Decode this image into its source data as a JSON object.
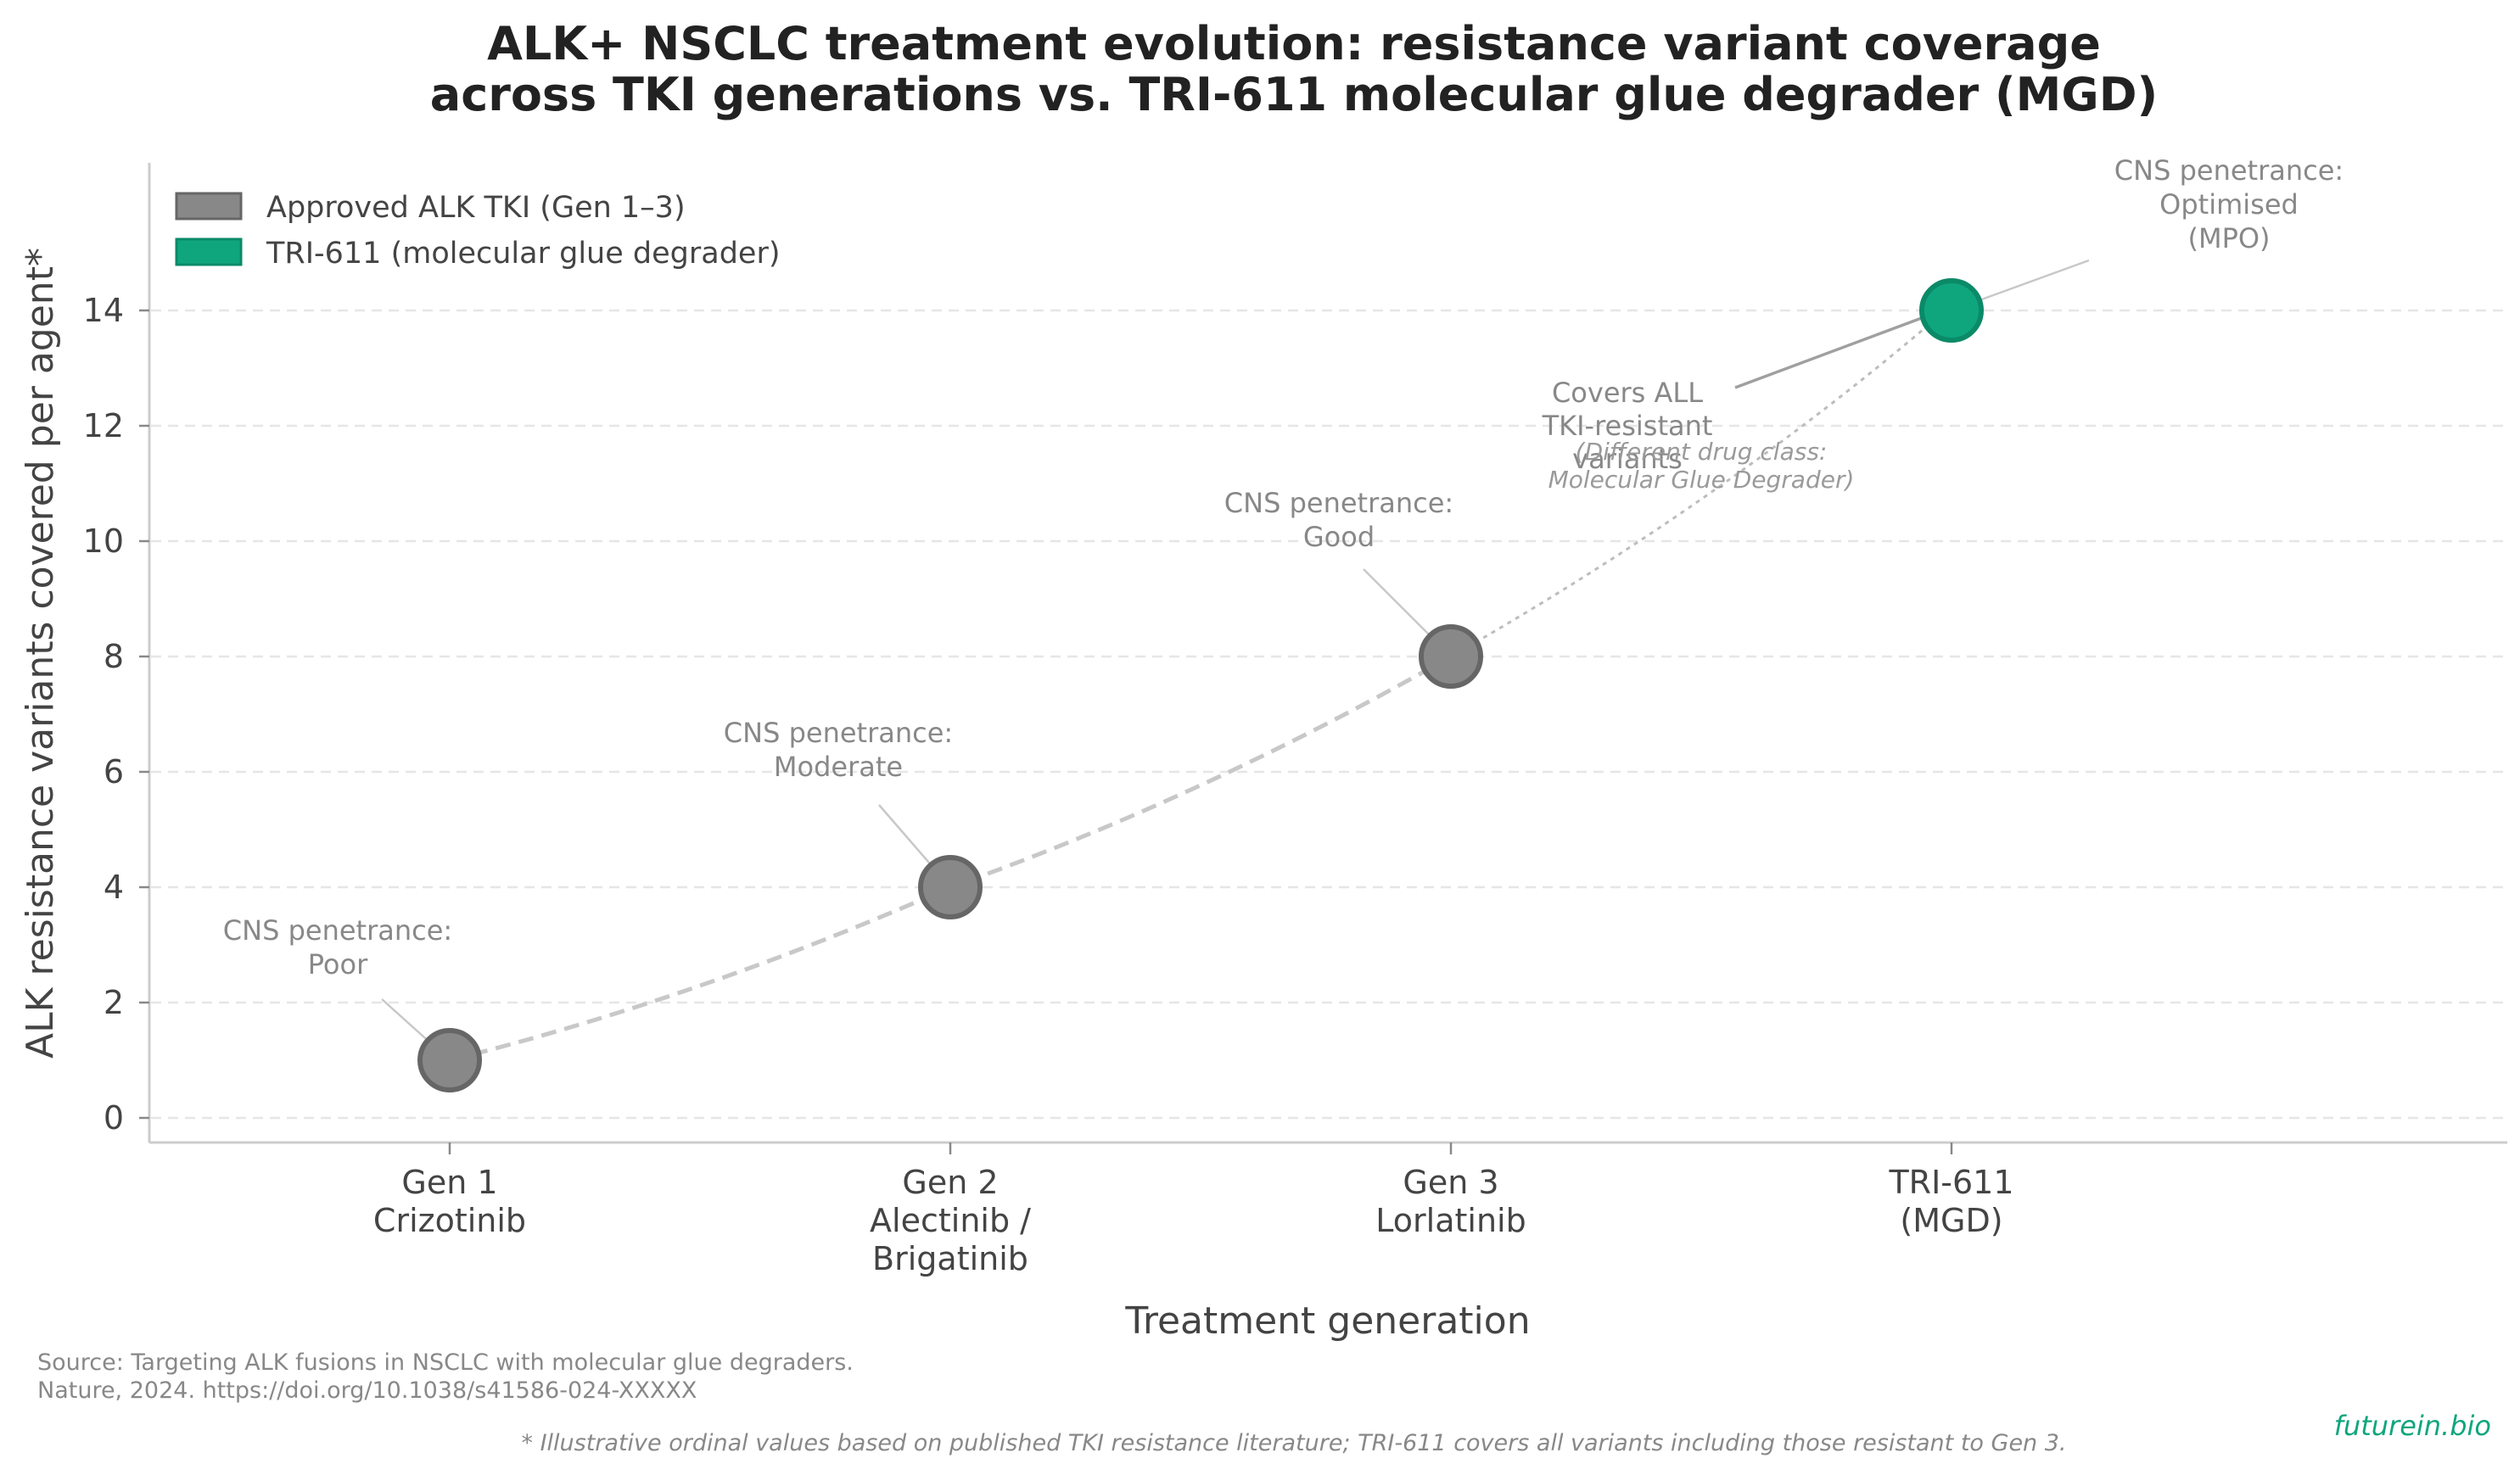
{
  "chart_data": {
    "type": "scatter",
    "title_line1": "ALK+ NSCLC treatment evolution: resistance variant coverage",
    "title_line2": "across TKI generations vs. TRI-611 molecular glue degrader (MGD)",
    "xlabel": "Treatment generation",
    "ylabel": "ALK resistance variants covered per agent*",
    "ylim": [
      -0.5,
      16.5
    ],
    "yticks": [
      0,
      2,
      4,
      6,
      8,
      10,
      12,
      14
    ],
    "grid": "horizontal dashed",
    "legend_position": "top-left",
    "categories": [
      [
        "Gen 1",
        "Crizotinib"
      ],
      [
        "Gen 2",
        "Alectinib /",
        "Brigatinib"
      ],
      [
        "Gen 3",
        "Lorlatinib"
      ],
      [
        "TRI-611",
        "(MGD)"
      ]
    ],
    "series": [
      {
        "name": "Approved ALK TKI (Gen 1–3)",
        "color": "#888888",
        "edge": "#666666",
        "x": [
          0,
          1,
          2
        ],
        "values": [
          1,
          4,
          8
        ]
      },
      {
        "name": "TRI-611 (molecular glue degrader)",
        "color": "#0fa67e",
        "edge": "#0b8a68",
        "x": [
          3
        ],
        "values": [
          14
        ]
      }
    ],
    "annotations": {
      "cns": [
        [
          "CNS penetrance:",
          "Poor"
        ],
        [
          "CNS penetrance:",
          "Moderate"
        ],
        [
          "CNS penetrance:",
          "Good"
        ],
        [
          "CNS penetrance:",
          "Optimised",
          "(MPO)"
        ]
      ],
      "covers": [
        "Covers ALL",
        "TKI-resistant",
        "variants"
      ],
      "drug_class": [
        "(Different drug class:",
        "Molecular Glue Degrader)"
      ]
    }
  },
  "source": [
    "Source: Targeting ALK fusions in NSCLC with molecular glue degraders.",
    "Nature, 2024. https://doi.org/10.1038/s41586-024-XXXXX"
  ],
  "footnote": "* Illustrative ordinal values based on published TKI resistance literature; TRI-611 covers all variants including those resistant to Gen 3.",
  "brand": "futurein.bio"
}
